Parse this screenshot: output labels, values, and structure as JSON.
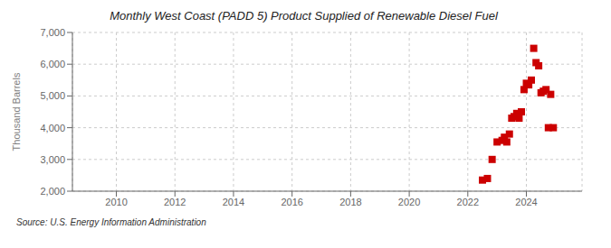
{
  "chart_data": {
    "type": "scatter",
    "title": "Monthly West Coast (PADD 5) Product Supplied of Renewable Diesel Fuel",
    "y_label": "Thousand Barrels",
    "annotations": [
      "Source: U.S. Energy Information Administration"
    ],
    "x": [
      2022.5,
      2022.67,
      2022.83,
      2023.0,
      2023.17,
      2023.25,
      2023.33,
      2023.42,
      2023.5,
      2023.58,
      2023.67,
      2023.75,
      2023.83,
      2023.92,
      2024.0,
      2024.08,
      2024.17,
      2024.25,
      2024.33,
      2024.42,
      2024.5,
      2024.58,
      2024.67,
      2024.75,
      2024.83,
      2024.92
    ],
    "values": [
      2350,
      2400,
      3000,
      3550,
      3600,
      3700,
      3550,
      3800,
      4300,
      4350,
      4450,
      4300,
      4500,
      5200,
      5400,
      5350,
      5500,
      6500,
      6050,
      5950,
      5100,
      5150,
      5200,
      4000,
      5050,
      4000
    ],
    "color": "#cc0000",
    "marker": "square",
    "xlim": [
      2008.5,
      2025.9
    ],
    "ylim": [
      2000,
      7000
    ],
    "xticks": [
      2010,
      2012,
      2014,
      2016,
      2018,
      2020,
      2022,
      2024
    ],
    "yticks": [
      {
        "value": 2000,
        "label": "2,000"
      },
      {
        "value": 3000,
        "label": "3,000"
      },
      {
        "value": 4000,
        "label": "4,000"
      },
      {
        "value": 5000,
        "label": "5,000"
      },
      {
        "value": 6000,
        "label": "6,000"
      },
      {
        "value": 7000,
        "label": "7,000"
      }
    ],
    "grid": true
  }
}
